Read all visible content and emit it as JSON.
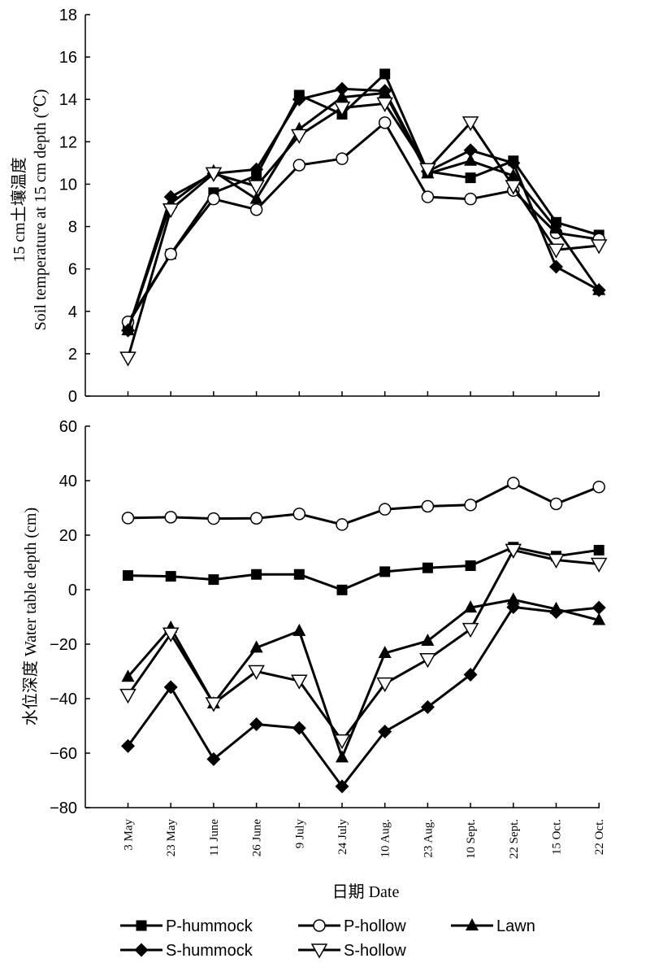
{
  "chart_data": [
    {
      "type": "line",
      "ylabel_line1": "15 cm土壤温度",
      "ylabel_line2": "Soil temperature at 15 cm depth (℃)",
      "ylim": [
        0,
        18
      ],
      "yticks": [
        0,
        2,
        4,
        6,
        8,
        10,
        12,
        14,
        16,
        18
      ],
      "categories": [
        "3 May",
        "23 May",
        "11 June",
        "26 June",
        "9 July",
        "24 July",
        "10 Aug.",
        "23 Aug.",
        "10 Sept.",
        "22 Sept.",
        "15 Oct.",
        "22 Oct."
      ],
      "series": [
        {
          "name": "P-hummock",
          "marker": "square",
          "values": [
            3.4,
            6.7,
            9.6,
            10.4,
            14.2,
            13.3,
            15.2,
            10.6,
            10.3,
            11.1,
            8.2,
            7.6
          ]
        },
        {
          "name": "P-hollow",
          "marker": "circle",
          "values": [
            3.5,
            6.7,
            9.3,
            8.8,
            10.9,
            11.2,
            12.9,
            9.4,
            9.3,
            9.7,
            7.7,
            7.4
          ]
        },
        {
          "name": "Lawn",
          "marker": "triangle-up",
          "values": [
            3.1,
            9.1,
            10.6,
            9.3,
            12.6,
            14.1,
            14.3,
            10.5,
            11.1,
            10.4,
            7.9,
            5.0
          ]
        },
        {
          "name": "S-hummock",
          "marker": "diamond",
          "values": [
            3.1,
            9.4,
            10.5,
            10.7,
            14.0,
            14.5,
            14.4,
            10.6,
            11.6,
            11.0,
            6.1,
            5.0
          ]
        },
        {
          "name": "S-hollow",
          "marker": "triangle-down",
          "values": [
            1.8,
            8.8,
            10.5,
            9.9,
            12.3,
            13.6,
            13.8,
            10.7,
            12.9,
            9.9,
            6.9,
            7.1
          ]
        }
      ]
    },
    {
      "type": "line",
      "ylabel": "水位深度 Water table depth (cm)",
      "xlabel": "日期 Date",
      "ylim": [
        -80,
        60
      ],
      "yticks": [
        -80,
        -60,
        -40,
        -20,
        0,
        20,
        40,
        60
      ],
      "yticklabels": [
        "−80",
        "−60",
        "−40",
        "−20",
        "0",
        "20",
        "40",
        "60"
      ],
      "categories": [
        "3 May",
        "23 May",
        "11 June",
        "26 June",
        "9 July",
        "24 July",
        "10 Aug.",
        "23 Aug.",
        "10 Sept.",
        "22 Sept.",
        "15 Oct.",
        "22 Oct."
      ],
      "series": [
        {
          "name": "P-hummock",
          "marker": "square",
          "values": [
            5.2,
            4.9,
            3.7,
            5.6,
            5.6,
            -0.1,
            6.6,
            8.0,
            8.8,
            15.6,
            12.3,
            14.5
          ]
        },
        {
          "name": "P-hollow",
          "marker": "circle",
          "values": [
            26.3,
            26.6,
            26.1,
            26.2,
            27.8,
            23.9,
            29.5,
            30.6,
            31.1,
            39.1,
            31.5,
            37.7
          ]
        },
        {
          "name": "Lawn",
          "marker": "triangle-up",
          "values": [
            -32.0,
            -14.0,
            -41.8,
            -21.3,
            -15.2,
            -61.6,
            -23.3,
            -18.8,
            -6.6,
            -3.7,
            -7.1,
            -11.2
          ]
        },
        {
          "name": "S-hummock",
          "marker": "diamond",
          "values": [
            -57.4,
            -35.8,
            -62.2,
            -49.4,
            -50.8,
            -72.2,
            -52.1,
            -43.1,
            -31.2,
            -6.4,
            -8.2,
            -6.6
          ]
        },
        {
          "name": "S-hollow",
          "marker": "triangle-down",
          "values": [
            -38.7,
            -16.2,
            -41.8,
            -30.0,
            -33.5,
            -55.4,
            -34.5,
            -25.6,
            -14.5,
            14.5,
            10.9,
            9.4
          ]
        }
      ]
    }
  ],
  "legend": [
    "P-hummock",
    "P-hollow",
    "Lawn",
    "S-hummock",
    "S-hollow"
  ]
}
